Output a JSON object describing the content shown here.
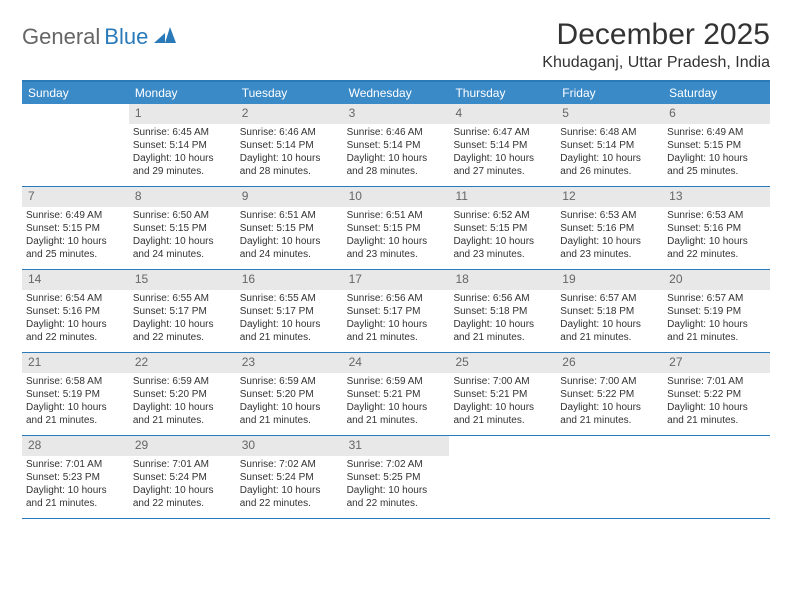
{
  "logo": {
    "word1": "General",
    "word2": "Blue"
  },
  "title": "December 2025",
  "location": "Khudaganj, Uttar Pradesh, India",
  "weekdays": [
    "Sunday",
    "Monday",
    "Tuesday",
    "Wednesday",
    "Thursday",
    "Friday",
    "Saturday"
  ],
  "colors": {
    "header_bg": "#3a8ac8",
    "border": "#2a7ab9",
    "daynum_bg": "#e8e8e8",
    "text": "#333333"
  },
  "weeks": [
    [
      {
        "n": "",
        "sr": "",
        "ss": "",
        "dl": ""
      },
      {
        "n": "1",
        "sr": "Sunrise: 6:45 AM",
        "ss": "Sunset: 5:14 PM",
        "dl": "Daylight: 10 hours and 29 minutes."
      },
      {
        "n": "2",
        "sr": "Sunrise: 6:46 AM",
        "ss": "Sunset: 5:14 PM",
        "dl": "Daylight: 10 hours and 28 minutes."
      },
      {
        "n": "3",
        "sr": "Sunrise: 6:46 AM",
        "ss": "Sunset: 5:14 PM",
        "dl": "Daylight: 10 hours and 28 minutes."
      },
      {
        "n": "4",
        "sr": "Sunrise: 6:47 AM",
        "ss": "Sunset: 5:14 PM",
        "dl": "Daylight: 10 hours and 27 minutes."
      },
      {
        "n": "5",
        "sr": "Sunrise: 6:48 AM",
        "ss": "Sunset: 5:14 PM",
        "dl": "Daylight: 10 hours and 26 minutes."
      },
      {
        "n": "6",
        "sr": "Sunrise: 6:49 AM",
        "ss": "Sunset: 5:15 PM",
        "dl": "Daylight: 10 hours and 25 minutes."
      }
    ],
    [
      {
        "n": "7",
        "sr": "Sunrise: 6:49 AM",
        "ss": "Sunset: 5:15 PM",
        "dl": "Daylight: 10 hours and 25 minutes."
      },
      {
        "n": "8",
        "sr": "Sunrise: 6:50 AM",
        "ss": "Sunset: 5:15 PM",
        "dl": "Daylight: 10 hours and 24 minutes."
      },
      {
        "n": "9",
        "sr": "Sunrise: 6:51 AM",
        "ss": "Sunset: 5:15 PM",
        "dl": "Daylight: 10 hours and 24 minutes."
      },
      {
        "n": "10",
        "sr": "Sunrise: 6:51 AM",
        "ss": "Sunset: 5:15 PM",
        "dl": "Daylight: 10 hours and 23 minutes."
      },
      {
        "n": "11",
        "sr": "Sunrise: 6:52 AM",
        "ss": "Sunset: 5:15 PM",
        "dl": "Daylight: 10 hours and 23 minutes."
      },
      {
        "n": "12",
        "sr": "Sunrise: 6:53 AM",
        "ss": "Sunset: 5:16 PM",
        "dl": "Daylight: 10 hours and 23 minutes."
      },
      {
        "n": "13",
        "sr": "Sunrise: 6:53 AM",
        "ss": "Sunset: 5:16 PM",
        "dl": "Daylight: 10 hours and 22 minutes."
      }
    ],
    [
      {
        "n": "14",
        "sr": "Sunrise: 6:54 AM",
        "ss": "Sunset: 5:16 PM",
        "dl": "Daylight: 10 hours and 22 minutes."
      },
      {
        "n": "15",
        "sr": "Sunrise: 6:55 AM",
        "ss": "Sunset: 5:17 PM",
        "dl": "Daylight: 10 hours and 22 minutes."
      },
      {
        "n": "16",
        "sr": "Sunrise: 6:55 AM",
        "ss": "Sunset: 5:17 PM",
        "dl": "Daylight: 10 hours and 21 minutes."
      },
      {
        "n": "17",
        "sr": "Sunrise: 6:56 AM",
        "ss": "Sunset: 5:17 PM",
        "dl": "Daylight: 10 hours and 21 minutes."
      },
      {
        "n": "18",
        "sr": "Sunrise: 6:56 AM",
        "ss": "Sunset: 5:18 PM",
        "dl": "Daylight: 10 hours and 21 minutes."
      },
      {
        "n": "19",
        "sr": "Sunrise: 6:57 AM",
        "ss": "Sunset: 5:18 PM",
        "dl": "Daylight: 10 hours and 21 minutes."
      },
      {
        "n": "20",
        "sr": "Sunrise: 6:57 AM",
        "ss": "Sunset: 5:19 PM",
        "dl": "Daylight: 10 hours and 21 minutes."
      }
    ],
    [
      {
        "n": "21",
        "sr": "Sunrise: 6:58 AM",
        "ss": "Sunset: 5:19 PM",
        "dl": "Daylight: 10 hours and 21 minutes."
      },
      {
        "n": "22",
        "sr": "Sunrise: 6:59 AM",
        "ss": "Sunset: 5:20 PM",
        "dl": "Daylight: 10 hours and 21 minutes."
      },
      {
        "n": "23",
        "sr": "Sunrise: 6:59 AM",
        "ss": "Sunset: 5:20 PM",
        "dl": "Daylight: 10 hours and 21 minutes."
      },
      {
        "n": "24",
        "sr": "Sunrise: 6:59 AM",
        "ss": "Sunset: 5:21 PM",
        "dl": "Daylight: 10 hours and 21 minutes."
      },
      {
        "n": "25",
        "sr": "Sunrise: 7:00 AM",
        "ss": "Sunset: 5:21 PM",
        "dl": "Daylight: 10 hours and 21 minutes."
      },
      {
        "n": "26",
        "sr": "Sunrise: 7:00 AM",
        "ss": "Sunset: 5:22 PM",
        "dl": "Daylight: 10 hours and 21 minutes."
      },
      {
        "n": "27",
        "sr": "Sunrise: 7:01 AM",
        "ss": "Sunset: 5:22 PM",
        "dl": "Daylight: 10 hours and 21 minutes."
      }
    ],
    [
      {
        "n": "28",
        "sr": "Sunrise: 7:01 AM",
        "ss": "Sunset: 5:23 PM",
        "dl": "Daylight: 10 hours and 21 minutes."
      },
      {
        "n": "29",
        "sr": "Sunrise: 7:01 AM",
        "ss": "Sunset: 5:24 PM",
        "dl": "Daylight: 10 hours and 22 minutes."
      },
      {
        "n": "30",
        "sr": "Sunrise: 7:02 AM",
        "ss": "Sunset: 5:24 PM",
        "dl": "Daylight: 10 hours and 22 minutes."
      },
      {
        "n": "31",
        "sr": "Sunrise: 7:02 AM",
        "ss": "Sunset: 5:25 PM",
        "dl": "Daylight: 10 hours and 22 minutes."
      },
      {
        "n": "",
        "sr": "",
        "ss": "",
        "dl": ""
      },
      {
        "n": "",
        "sr": "",
        "ss": "",
        "dl": ""
      },
      {
        "n": "",
        "sr": "",
        "ss": "",
        "dl": ""
      }
    ]
  ]
}
